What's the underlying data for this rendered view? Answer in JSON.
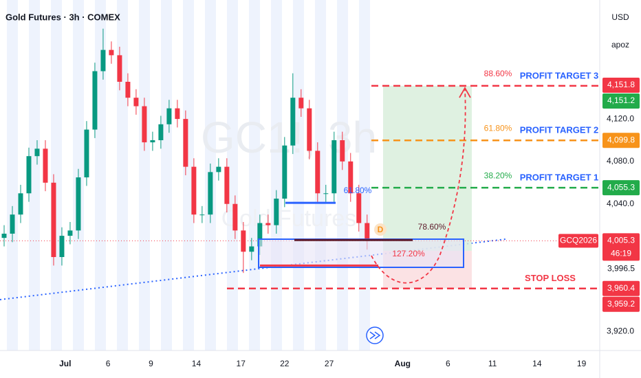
{
  "chart_data": {
    "type": "candlestick",
    "title": "Gold Futures · 3h · COMEX",
    "watermark": "GC1!, 3h",
    "watermark_sub": "Gold Futures",
    "currency": "USD",
    "scale_mode": "apoz",
    "up_color": "#089981",
    "down_color": "#f23645",
    "x": [
      0,
      1,
      2,
      3,
      4,
      5,
      6,
      7,
      8,
      9,
      10,
      11,
      12,
      13,
      14,
      15,
      16,
      17,
      18,
      19,
      20,
      21,
      22,
      23,
      24,
      25,
      26,
      27,
      28,
      29,
      30,
      31,
      32,
      33,
      34,
      35,
      36,
      37,
      38,
      39,
      40,
      41,
      42,
      43,
      44
    ],
    "open": [
      4008,
      4012,
      4030,
      4050,
      4085,
      4092,
      4060,
      3990,
      4010,
      4015,
      4065,
      4110,
      4165,
      4185,
      4180,
      4155,
      4140,
      4132,
      4098,
      4100,
      4115,
      4130,
      4120,
      4075,
      4030,
      4030,
      4070,
      4075,
      4040,
      4015,
      3995,
      4000,
      4022,
      4020,
      4045,
      4095,
      4140,
      4130,
      4090,
      4050,
      4050,
      4100,
      4080,
      4050,
      4022
    ],
    "high": [
      4020,
      4038,
      4058,
      4093,
      4100,
      4100,
      4068,
      4018,
      4023,
      4073,
      4118,
      4173,
      4205,
      4193,
      4188,
      4163,
      4148,
      4140,
      4108,
      4123,
      4138,
      4138,
      4128,
      4083,
      4038,
      4078,
      4083,
      4083,
      4048,
      4023,
      4008,
      4030,
      4030,
      4053,
      4103,
      4163,
      4148,
      4138,
      4098,
      4058,
      4108,
      4108,
      4088,
      4058,
      4030
    ],
    "low": [
      4000,
      4004,
      4022,
      4042,
      4077,
      4052,
      3982,
      3982,
      4002,
      4007,
      4057,
      4102,
      4157,
      4172,
      4147,
      4132,
      4124,
      4090,
      4090,
      4092,
      4107,
      4112,
      4067,
      4022,
      4022,
      4022,
      4062,
      4032,
      4007,
      3975,
      3987,
      3992,
      4012,
      4012,
      4037,
      4087,
      4122,
      4082,
      4042,
      4042,
      4042,
      4072,
      4042,
      4014,
      3997
    ],
    "close": [
      4012,
      4030,
      4050,
      4085,
      4092,
      4060,
      3990,
      4010,
      4015,
      4065,
      4110,
      4165,
      4185,
      4180,
      4155,
      4140,
      4132,
      4098,
      4100,
      4115,
      4130,
      4120,
      4075,
      4030,
      4030,
      4070,
      4075,
      4040,
      4015,
      3995,
      4000,
      4022,
      4020,
      4045,
      4095,
      4140,
      4130,
      4090,
      4050,
      4050,
      4100,
      4080,
      4050,
      4022,
      4005
    ],
    "xlim": [
      -0.5,
      72.2
    ],
    "xticks": [
      {
        "value": 7.4,
        "label": "Jul"
      },
      12.6,
      17.8,
      23.3,
      28.7,
      34,
      39.4,
      {
        "value": 48.3,
        "label": "Aug"
      },
      53.8,
      59.2,
      64.6,
      70
    ],
    "xtick_labels": [
      "Jul",
      "6",
      "9",
      "14",
      "17",
      "22",
      "27",
      "Aug",
      "6",
      "11",
      "14",
      "19"
    ],
    "ylim": [
      3902,
      4232
    ],
    "yticks": [
      {
        "value": 4120,
        "label": "4,120.0"
      },
      {
        "value": 4080,
        "label": "4,080.0"
      },
      {
        "value": 4040,
        "label": "4,040.0"
      },
      {
        "value": 3920,
        "label": "3,920.0"
      }
    ],
    "levels": [
      {
        "name": "PROFIT TARGET 3",
        "value": 4151.2,
        "fib": "88.60%",
        "color": "#f23645",
        "name_color": "#2962ff"
      },
      {
        "name": "PROFIT TARGET 2",
        "value": 4099.8,
        "fib": "61.80%",
        "color": "#f7931a",
        "name_color": "#2962ff"
      },
      {
        "name": "PROFIT TARGET 1",
        "value": 4055.3,
        "fib": "38.20%",
        "color": "#22ab4a",
        "name_color": "#2962ff"
      },
      {
        "name": "STOP LOSS",
        "value": 3960.4,
        "color": "#f23645",
        "name_color": "#f23645"
      }
    ],
    "fib_lines": [
      {
        "label": "61.80%",
        "value": 4041,
        "color": "#2962ff"
      },
      {
        "label": "78.60%",
        "value": 4006,
        "color": "#5d1a2a"
      },
      {
        "label": "127.20%",
        "value": 3982,
        "color": "#f23645"
      }
    ],
    "point_label": "D",
    "symbol_label": "GCQ2026",
    "countdown": "46:19",
    "price_labels": [
      {
        "value": 4151.8,
        "label": "4,151.8",
        "color": "#f23645"
      },
      {
        "value": 4151.2,
        "label": "4,151.2",
        "color": "#22ab4a"
      },
      {
        "value": 4099.8,
        "label": "4,099.8",
        "color": "#f7931a"
      },
      {
        "value": 4055.3,
        "label": "4,055.3",
        "color": "#22ab4a"
      },
      {
        "value": 4005.3,
        "label": "4,005.3",
        "color": "#f23645"
      },
      {
        "value": 3996.5,
        "label": "3,996.5",
        "color": "#ffffff"
      },
      {
        "value": 3960.4,
        "label": "3,960.4",
        "color": "#f23645"
      },
      {
        "value": 3959.2,
        "label": "3,959.2",
        "color": "#f23645"
      }
    ]
  }
}
